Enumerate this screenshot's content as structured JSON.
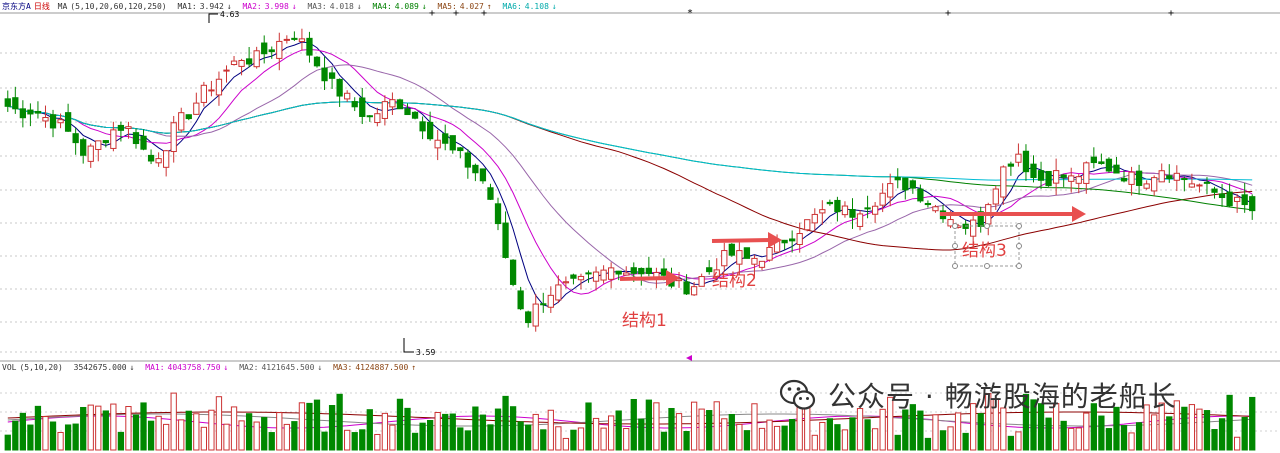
{
  "chart_data": [
    {
      "type": "candlestick",
      "panel": "price",
      "stock_name": "京东方A",
      "period": "日线",
      "indicator": "MA",
      "params": "(5,10,20,60,120,250)",
      "ma_labels": [
        {
          "name": "MA1:",
          "value": "3.942",
          "arrow": "↓",
          "color": "#333333"
        },
        {
          "name": "MA2:",
          "value": "3.998",
          "arrow": "↓",
          "color": "#cc00cc"
        },
        {
          "name": "MA3:",
          "value": "4.018",
          "arrow": "↓",
          "color": "#555555"
        },
        {
          "name": "MA4:",
          "value": "4.089",
          "arrow": "↓",
          "color": "#008000"
        },
        {
          "name": "MA5:",
          "value": "4.027",
          "arrow": "↑",
          "color": "#8b4513"
        },
        {
          "name": "MA6:",
          "value": "4.108",
          "arrow": "↓",
          "color": "#00aaaa"
        }
      ],
      "ylim": [
        3.55,
        4.66
      ],
      "high_label": "4.63",
      "low_label": "3.59",
      "up_color": "#cc3333",
      "down_color": "#008800",
      "closes": [
        4.36,
        4.34,
        4.35,
        4.32,
        4.3,
        4.26,
        4.2,
        4.24,
        4.28,
        4.3,
        4.25,
        4.18,
        4.22,
        4.3,
        4.34,
        4.4,
        4.44,
        4.48,
        4.52,
        4.51,
        4.54,
        4.57,
        4.6,
        4.55,
        4.49,
        4.43,
        4.39,
        4.35,
        4.32,
        4.36,
        4.38,
        4.34,
        4.3,
        4.26,
        4.22,
        4.19,
        4.15,
        4.1,
        3.93,
        3.78,
        3.66,
        3.72,
        3.76,
        3.77,
        3.78,
        3.8,
        3.82,
        3.84,
        3.82,
        3.83,
        3.81,
        3.79,
        3.77,
        3.78,
        3.82,
        3.86,
        3.88,
        3.86,
        3.87,
        3.89,
        3.93,
        3.96,
        3.99,
        4.02,
        4.03,
        4.01,
        4.04,
        4.06,
        4.09,
        4.11,
        4.09,
        4.05,
        4.02,
        3.99,
        3.97,
        3.98,
        4.1,
        4.17,
        4.21,
        4.13,
        4.12,
        4.14,
        4.12,
        4.15,
        4.17,
        4.16,
        4.14,
        4.12,
        4.13,
        4.16,
        4.14,
        4.12,
        4.1,
        4.08,
        4.06,
        4.04,
        4.02
      ],
      "volume_panel": {
        "indicator": "VOL",
        "params": "(5,10,20)",
        "volume_value": "3542675.000",
        "volume_arrow": "↓",
        "ma_labels": [
          {
            "name": "MA1:",
            "value": "4043758.750",
            "arrow": "↓",
            "color": "#cc00cc"
          },
          {
            "name": "MA2:",
            "value": "4121645.500",
            "arrow": "↓",
            "color": "#555555"
          },
          {
            "name": "MA3:",
            "value": "4124887.500",
            "arrow": "↑",
            "color": "#8b0000"
          }
        ]
      }
    }
  ],
  "annotations": [
    {
      "label": "结构1"
    },
    {
      "label": "结构2"
    },
    {
      "label": "结构3"
    }
  ],
  "watermark": {
    "text": "公众号 · 畅游股海的老船长",
    "icon": "wechat-icon"
  },
  "markers": [
    "*",
    "+",
    "+",
    "+",
    "+",
    "+",
    "+"
  ]
}
